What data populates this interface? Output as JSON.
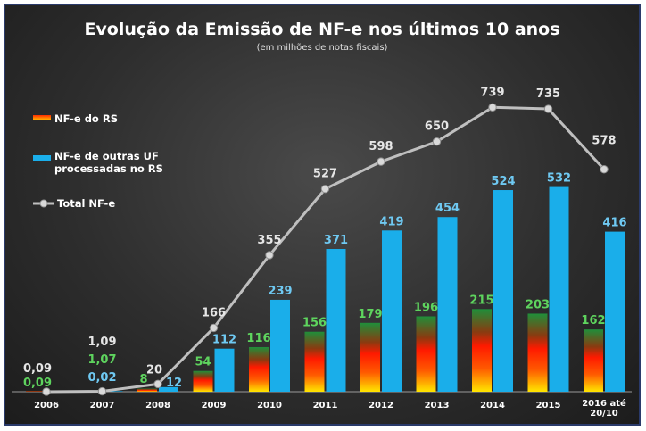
{
  "chart_data": {
    "type": "bar",
    "title": "Evolução da Emissão de NF-e nos últimos 10 anos",
    "subtitle": "(em milhões de notas fiscais)",
    "categories": [
      "2006",
      "2007",
      "2008",
      "2009",
      "2010",
      "2011",
      "2012",
      "2013",
      "2014",
      "2015",
      "2016 até 20/10"
    ],
    "series": [
      {
        "name": "NF-e do RS",
        "kind": "bar",
        "values": [
          0.09,
          1.07,
          8,
          54,
          116,
          156,
          179,
          196,
          215,
          203,
          162
        ],
        "labels": [
          "0,09",
          "1,07",
          "8",
          "54",
          "116",
          "156",
          "179",
          "196",
          "215",
          "203",
          "162"
        ],
        "color": "#ff3300",
        "label_color": "#5ed45e"
      },
      {
        "name": "NF-e de outras UF processadas no RS",
        "kind": "bar",
        "values": [
          0,
          0.02,
          12,
          112,
          239,
          371,
          419,
          454,
          524,
          532,
          416
        ],
        "labels": [
          "",
          "0,02",
          "12",
          "112",
          "239",
          "371",
          "419",
          "454",
          "524",
          "532",
          "416"
        ],
        "color": "#1aaeea",
        "label_color": "#6fc9f2"
      },
      {
        "name": "Total NF-e",
        "kind": "line",
        "values": [
          0.09,
          1.09,
          20,
          166,
          355,
          527,
          598,
          650,
          739,
          735,
          578
        ],
        "labels": [
          "0,09",
          "1,09",
          "20",
          "166",
          "355",
          "527",
          "598",
          "650",
          "739",
          "735",
          "578"
        ],
        "color": "#bfbfbf",
        "label_color": "#e6e6e6"
      }
    ],
    "ylim": [
      0,
      800
    ],
    "grid": false,
    "legend_position": "left"
  }
}
